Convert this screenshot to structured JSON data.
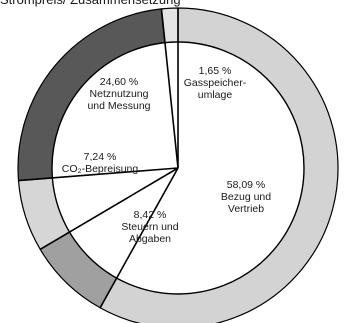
{
  "header_text": "Strompreis/ Zusammensetzung",
  "chart_data": {
    "type": "pie",
    "style": "donut",
    "start": "top, clockwise",
    "slices": [
      {
        "value": 58.09,
        "value_label": "58,09 %",
        "label_lines": [
          "Bezug und",
          "Vertrieb"
        ],
        "color": "#d3d3d3"
      },
      {
        "value": 8.42,
        "value_label": "8,42 %",
        "label_lines": [
          "Steuern und",
          "Abgaben"
        ],
        "color": "#a0a0a0"
      },
      {
        "value": 7.24,
        "value_label": "7,24 %",
        "label_lines": [
          "CO₂-Bepreisung"
        ],
        "color": "#d6d6d6"
      },
      {
        "value": 24.6,
        "value_label": "24,60 %",
        "label_lines": [
          "Netznutzung",
          "und Messung"
        ],
        "color": "#585858"
      },
      {
        "value": 1.65,
        "value_label": "1,65 %",
        "label_lines": [
          "Gasspeicher-",
          "umlage"
        ],
        "color": "#e4e4e4"
      }
    ],
    "inner_color": "#ffffff",
    "separator_color": "#000000"
  }
}
